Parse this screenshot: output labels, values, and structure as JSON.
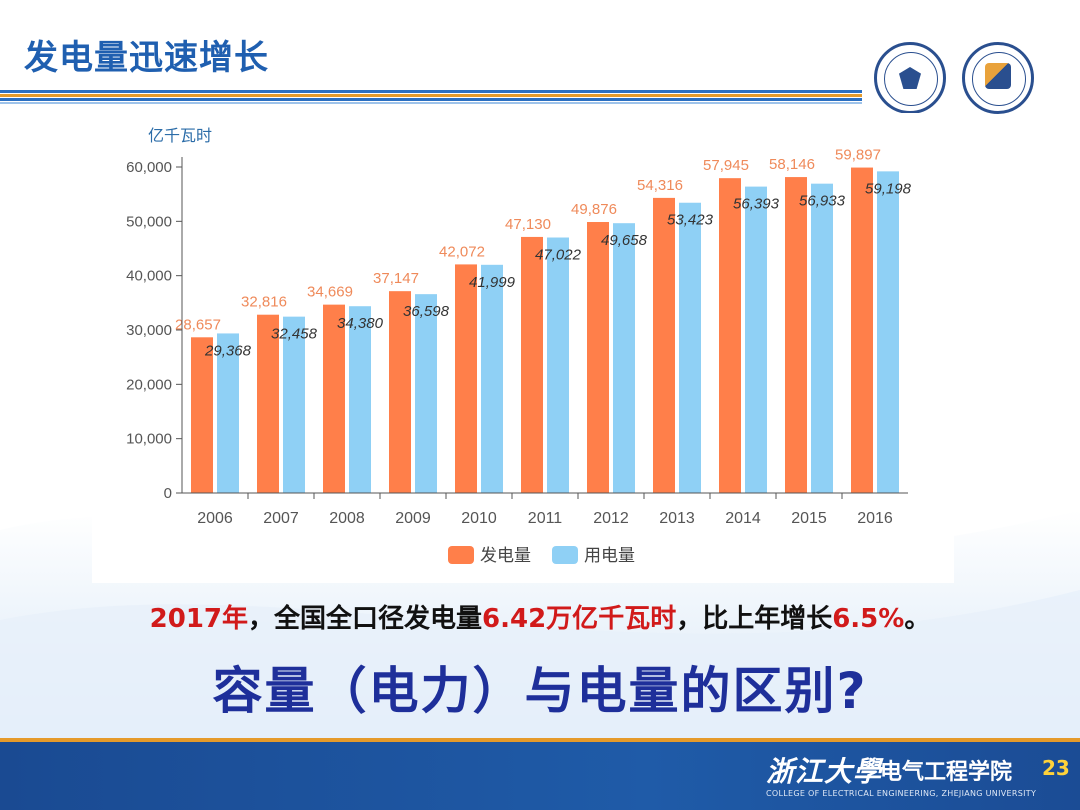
{
  "slide": {
    "title": "发电量迅速增长",
    "note_year": "2017年",
    "note_mid": "，全国全口径发电量",
    "note_value": "6.42万亿",
    "note_unit": "千瓦时",
    "note_tail": "，比上年增长",
    "note_pct": "6.5%",
    "note_end": "。",
    "question": "容量（电力）与电量的区别?",
    "footer_brush": "浙江大學",
    "footer_school": "电气工程学院",
    "footer_english": "COLLEGE OF ELECTRICAL ENGINEERING, ZHEJIANG UNIVERSITY",
    "page_number": "23"
  },
  "colors": {
    "generation": "#ff7f4a",
    "consumption": "#8fd0f5",
    "title_blue": "#1f5fb0",
    "footer_blue": "#1f5ba8"
  },
  "chart_data": {
    "type": "bar",
    "ylabel": "亿千瓦时",
    "ylim": [
      0,
      60000
    ],
    "yticks": [
      "0",
      "10,000",
      "20,000",
      "30,000",
      "40,000",
      "50,000",
      "60,000"
    ],
    "ytick_values": [
      0,
      10000,
      20000,
      30000,
      40000,
      50000,
      60000
    ],
    "categories": [
      "2006",
      "2007",
      "2008",
      "2009",
      "2010",
      "2011",
      "2012",
      "2013",
      "2014",
      "2015",
      "2016"
    ],
    "legend_position": "bottom",
    "series": [
      {
        "name": "发电量",
        "values": [
          28657,
          32816,
          34669,
          37147,
          42072,
          47130,
          49876,
          54316,
          57945,
          58146,
          59897
        ],
        "labels": [
          "28,657",
          "32,816",
          "34,669",
          "37,147",
          "42,072",
          "47,130",
          "49,876",
          "54,316",
          "57,945",
          "58,146",
          "59,897"
        ]
      },
      {
        "name": "用电量",
        "values": [
          29368,
          32458,
          34380,
          36598,
          41999,
          47022,
          49658,
          53423,
          56393,
          56933,
          59198
        ],
        "labels": [
          "29,368",
          "32,458",
          "34,380",
          "36,598",
          "41,999",
          "47,022",
          "49,658",
          "53,423",
          "56,393",
          "56,933",
          "59,198"
        ]
      }
    ]
  }
}
